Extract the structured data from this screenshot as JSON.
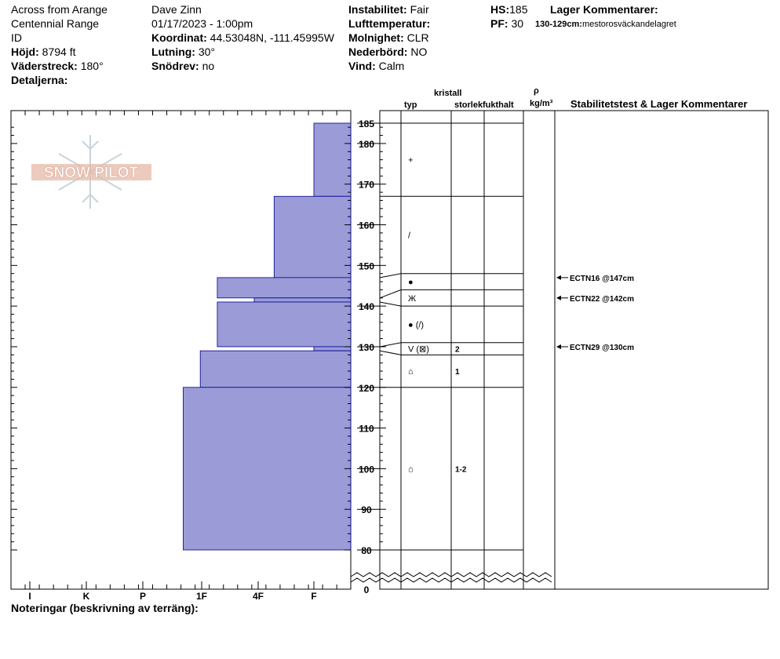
{
  "header": {
    "location_line1": "Across from Arange",
    "location_line2": "Centennial Range",
    "location_line3": "ID",
    "elevation_label": "Höjd:",
    "elevation_value": "8794 ft",
    "aspect_label": "Väderstreck:",
    "aspect_value": "180°",
    "details_label": "Detaljerna:",
    "observer": "Dave Zinn",
    "datetime": "01/17/2023 - 1:00pm",
    "coord_label": "Koordinat:",
    "coord_value": "44.53048N, -111.45995W",
    "slope_label": "Lutning:",
    "slope_value": "30°",
    "drift_label": "Snödrev:",
    "drift_value": "no",
    "instability_label": "Instabilitet:",
    "instability_value": "Fair",
    "airtemp_label": "Lufttemperatur:",
    "airtemp_value": "",
    "sky_label": "Molnighet:",
    "sky_value": "CLR",
    "precip_label": "Nederbörd:",
    "precip_value": "NO",
    "wind_label": "Vind:",
    "wind_value": "Calm",
    "hs_label": "HS:",
    "hs_value": "185",
    "pf_label": "PF:",
    "pf_value": "30",
    "layer_comments_label": "Lager Kommentarer:",
    "layer_comment_range": "130-129cm:",
    "layer_comment_text": "mestorosväckandelagret"
  },
  "columns": {
    "crystal": "kristall",
    "type": "typ",
    "size": "storlek",
    "moisture": "fukthalt",
    "rho": "ρ",
    "density_unit": "kg/m³",
    "stability": "Stabilitetstest & Lager Kommentarer"
  },
  "logo_text": "SNOW PILOT",
  "footer": {
    "notes_label": "Noteringar (beskrivning av terräng):"
  },
  "colors": {
    "fill": "#9b9bd8",
    "edge": "#00008b",
    "logo": "#e6b9a8"
  },
  "chart_data": {
    "type": "bar",
    "hardness_labels": [
      "I",
      "K",
      "P",
      "1F",
      "4F",
      "F"
    ],
    "depth_ticks": [
      0,
      80,
      90,
      100,
      110,
      120,
      130,
      140,
      150,
      160,
      170,
      180,
      185
    ],
    "ylim": [
      80,
      185
    ],
    "layers": [
      {
        "top": 185,
        "bottom": 167,
        "hardness": "F"
      },
      {
        "top": 167,
        "bottom": 147,
        "hardness": "4F+"
      },
      {
        "top": 147,
        "bottom": 142,
        "hardness": "1F+"
      },
      {
        "top": 142,
        "bottom": 141,
        "hardness": "4F-"
      },
      {
        "top": 141,
        "bottom": 130,
        "hardness": "1F+"
      },
      {
        "top": 130,
        "bottom": 129,
        "hardness": "F"
      },
      {
        "top": 129,
        "bottom": 120,
        "hardness": "1F"
      },
      {
        "top": 120,
        "bottom": 80,
        "hardness": "1F-"
      }
    ],
    "hardness_index": {
      "F": 5,
      "4F+": 4.3,
      "1F+": 3.3,
      "4F-": 3.95,
      "1F": 3.0,
      "1F-": 2.7
    },
    "grain_rows": [
      {
        "top": 185,
        "bottom": 167,
        "symbol": "+",
        "size": ""
      },
      {
        "top": 167,
        "bottom": 148,
        "symbol": "/",
        "size": ""
      },
      {
        "top": 148,
        "bottom": 144,
        "symbol": "●",
        "size": ""
      },
      {
        "top": 144,
        "bottom": 140,
        "symbol": "Ж",
        "size": ""
      },
      {
        "top": 140,
        "bottom": 131,
        "symbol": "● (/)",
        "size": ""
      },
      {
        "top": 131,
        "bottom": 128,
        "symbol": "V (⊠)",
        "size": "2"
      },
      {
        "top": 128,
        "bottom": 120,
        "symbol": "⌂",
        "size": "1"
      },
      {
        "top": 120,
        "bottom": 80,
        "symbol": "⌂",
        "size": "1-2"
      }
    ],
    "left_boundaries": [
      167,
      147,
      142,
      141,
      130,
      129,
      120,
      80
    ],
    "stability_tests": [
      {
        "depth": 147,
        "label": "ECTN16 @147cm"
      },
      {
        "depth": 142,
        "label": "ECTN22 @142cm"
      },
      {
        "depth": 130,
        "label": "ECTN29 @130cm"
      }
    ]
  }
}
